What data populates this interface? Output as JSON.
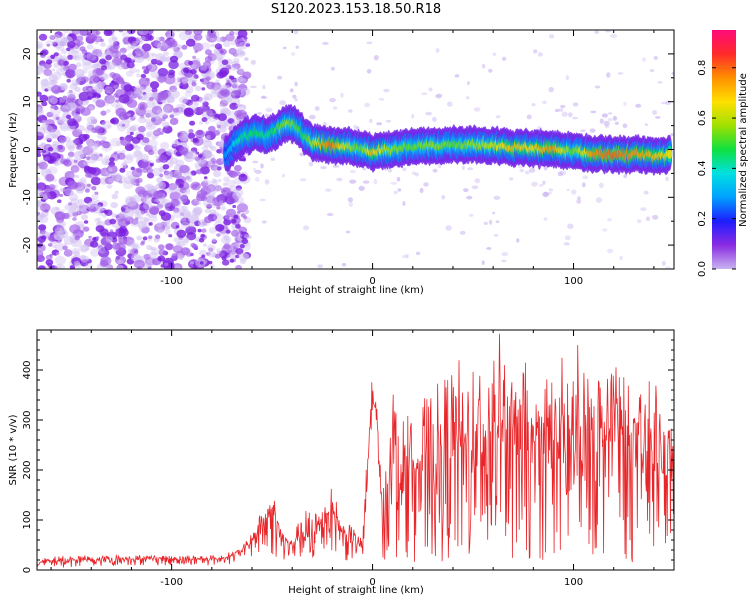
{
  "title": "S120.2023.153.18.50.R18",
  "colors": {
    "trace": "#e8262a",
    "background_hits": "#a05be8",
    "colormap": [
      "#c8b4f0",
      "#8a2be2",
      "#1d1dff",
      "#00a0ff",
      "#00e0e0",
      "#10e040",
      "#a0e000",
      "#ffe000",
      "#ff9000",
      "#ff2a2a",
      "#ff0a7a"
    ]
  },
  "chart_data": [
    {
      "type": "heatmap",
      "xlabel": "Height of straight line (km)",
      "ylabel": "Frequency (Hz)",
      "xlim": [
        -167,
        150
      ],
      "ylim": [
        -25,
        25
      ],
      "x_ticks": [
        -100,
        0,
        100
      ],
      "x_tick_labels": [
        "-100",
        "0",
        "100"
      ],
      "y_ticks": [
        -20,
        -10,
        0,
        10,
        20
      ],
      "y_tick_labels": [
        "-20",
        "-10",
        "0",
        "10",
        "20"
      ],
      "grid": false,
      "colorbar": {
        "label": "Normalized spectral amplitude",
        "range": [
          0,
          0.95
        ],
        "ticks": [
          0.0,
          0.2,
          0.4,
          0.6,
          0.8
        ],
        "tick_labels": [
          "0.0",
          "0.2",
          "0.4",
          "0.6",
          "0.8"
        ]
      },
      "ridge": {
        "x": [
          -73,
          -65,
          -58,
          -52,
          -46,
          -42,
          -38,
          -34,
          -30,
          -25,
          -20,
          -15,
          -10,
          -5,
          0,
          10,
          20,
          30,
          40,
          50,
          60,
          70,
          80,
          90,
          100,
          110,
          120,
          130,
          140,
          148
        ],
        "freq": [
          -1,
          2.5,
          3.5,
          3,
          4.5,
          5.5,
          5,
          3,
          1.5,
          1.2,
          1,
          0.8,
          0.5,
          0.2,
          -0.5,
          0,
          0.5,
          0.8,
          1,
          1,
          0.8,
          0.5,
          0.2,
          0,
          -0.3,
          -1,
          -1,
          -1,
          -1.2,
          -1.3
        ],
        "amplitude": [
          0.3,
          0.45,
          0.5,
          0.45,
          0.55,
          0.6,
          0.55,
          0.5,
          0.6,
          0.75,
          0.85,
          0.7,
          0.6,
          0.55,
          0.75,
          0.6,
          0.55,
          0.6,
          0.55,
          0.6,
          0.65,
          0.75,
          0.7,
          0.8,
          0.55,
          0.8,
          0.85,
          0.8,
          0.75,
          0.7
        ]
      },
      "noise_region_x": [
        -167,
        -70
      ],
      "noise_amplitude": 0.15
    },
    {
      "type": "line",
      "xlabel": "Height of straight line (km)",
      "ylabel": "SNR (10 * v/v)",
      "xlim": [
        -167,
        150
      ],
      "ylim": [
        0,
        480
      ],
      "x_ticks": [
        -100,
        0,
        100
      ],
      "x_tick_labels": [
        "-100",
        "0",
        "100"
      ],
      "y_ticks": [
        0,
        100,
        200,
        300,
        400
      ],
      "y_tick_labels": [
        "0",
        "100",
        "200",
        "300",
        "400"
      ],
      "grid": false,
      "series": [
        {
          "x": [
            -167,
            -150,
            -130,
            -110,
            -90,
            -75,
            -65,
            -60,
            -55,
            -50,
            -45,
            -40,
            -35,
            -30,
            -25,
            -20,
            -15,
            -10,
            -5,
            -2,
            0,
            2,
            5,
            10,
            15,
            20,
            30,
            40,
            50,
            60,
            70,
            80,
            90,
            100,
            110,
            120,
            130,
            140,
            145,
            150
          ],
          "y": [
            15,
            18,
            20,
            22,
            20,
            22,
            35,
            55,
            90,
            120,
            60,
            45,
            70,
            50,
            100,
            120,
            70,
            60,
            40,
            250,
            340,
            310,
            80,
            220,
            150,
            200,
            160,
            230,
            190,
            270,
            230,
            200,
            240,
            210,
            230,
            260,
            200,
            230,
            180,
            210
          ],
          "upper": [
            25,
            30,
            30,
            30,
            30,
            30,
            45,
            75,
            120,
            140,
            80,
            60,
            120,
            140,
            130,
            140,
            90,
            90,
            60,
            300,
            375,
            330,
            150,
            390,
            320,
            330,
            360,
            420,
            460,
            480,
            470,
            380,
            420,
            470,
            400,
            480,
            330,
            420,
            320,
            300
          ],
          "lower": [
            5,
            5,
            8,
            10,
            8,
            10,
            15,
            20,
            30,
            25,
            20,
            15,
            20,
            20,
            30,
            40,
            20,
            15,
            10,
            150,
            200,
            200,
            10,
            20,
            15,
            15,
            15,
            20,
            15,
            20,
            20,
            15,
            25,
            20,
            30,
            25,
            15,
            30,
            20,
            70
          ]
        }
      ]
    }
  ]
}
